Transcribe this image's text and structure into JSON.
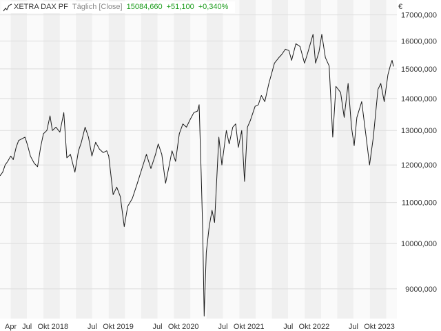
{
  "header": {
    "instrument": "XETRA DAX PF",
    "mode": "Täglich [Close]",
    "last": "15084,660",
    "change": "+51,100",
    "change_pct": "+0,340%",
    "indicator_icon": "line-chart-icon"
  },
  "colors": {
    "line": "#1a1a1a",
    "band_light": "#fafafa",
    "band_dark": "#f0f0f0",
    "right_band": "#ebebeb",
    "grid": "#dcdcdc",
    "positive": "#1a9b1a"
  },
  "chart_data": {
    "type": "line",
    "currency_label": "€",
    "y_scale": "log",
    "ylim": [
      8400,
      17600
    ],
    "y_ticks": [
      {
        "value": 9000,
        "label": "9000,000"
      },
      {
        "value": 10000,
        "label": "10000,000"
      },
      {
        "value": 11000,
        "label": "11000,000"
      },
      {
        "value": 12000,
        "label": "12000,000"
      },
      {
        "value": 13000,
        "label": "13000,000"
      },
      {
        "value": 14000,
        "label": "14000,000"
      },
      {
        "value": 15000,
        "label": "15000,000"
      },
      {
        "value": 16000,
        "label": "16000,000"
      },
      {
        "value": 17000,
        "label": "17000,000"
      }
    ],
    "x_range": [
      "2017-01-31",
      "2023-03-01"
    ],
    "x_ticks": [
      {
        "date": "2017-04-01",
        "label": "Apr"
      },
      {
        "date": "2017-07-01",
        "label": "Jul"
      },
      {
        "date": "2017-10-01",
        "label": "Okt"
      },
      {
        "date": "2018-01-01",
        "label": "2018"
      },
      {
        "date": "2018-04-01",
        "label": "Apr"
      },
      {
        "date": "2018-07-01",
        "label": "Jul"
      },
      {
        "date": "2018-10-01",
        "label": "Okt"
      },
      {
        "date": "2019-01-01",
        "label": "2019"
      },
      {
        "date": "2019-04-01",
        "label": "Apr"
      },
      {
        "date": "2019-07-01",
        "label": "Jul"
      },
      {
        "date": "2019-10-01",
        "label": "Okt"
      },
      {
        "date": "2020-01-01",
        "label": "2020"
      },
      {
        "date": "2020-04-01",
        "label": "Apr"
      },
      {
        "date": "2020-07-01",
        "label": "Jul"
      },
      {
        "date": "2020-10-01",
        "label": "Okt"
      },
      {
        "date": "2021-01-01",
        "label": "2021"
      },
      {
        "date": "2021-04-01",
        "label": "Apr"
      },
      {
        "date": "2021-07-01",
        "label": "Jul"
      },
      {
        "date": "2021-10-01",
        "label": "Okt"
      },
      {
        "date": "2022-01-01",
        "label": "2022"
      },
      {
        "date": "2022-04-01",
        "label": "Apr"
      },
      {
        "date": "2022-07-01",
        "label": "Jul"
      },
      {
        "date": "2022-10-01",
        "label": "Okt"
      },
      {
        "date": "2023-01-01",
        "label": "2023"
      }
    ],
    "x_tick_labels_visible": [
      "Apr",
      "Jul",
      "Okt",
      "2018",
      "Jul",
      "Okt",
      "2019",
      "Jul",
      "Okt",
      "2020",
      "Jul",
      "Okt",
      "2021",
      "Jul",
      "Okt",
      "2022",
      "Jul",
      "Okt",
      "2023"
    ],
    "grid": true,
    "series": [
      {
        "points": [
          [
            "2017-01-31",
            11700
          ],
          [
            "2017-02-15",
            11800
          ],
          [
            "2017-03-01",
            12000
          ],
          [
            "2017-03-15",
            12100
          ],
          [
            "2017-04-01",
            12250
          ],
          [
            "2017-04-15",
            12150
          ],
          [
            "2017-05-01",
            12500
          ],
          [
            "2017-05-15",
            12700
          ],
          [
            "2017-06-01",
            12750
          ],
          [
            "2017-06-20",
            12800
          ],
          [
            "2017-07-05",
            12550
          ],
          [
            "2017-07-20",
            12250
          ],
          [
            "2017-08-10",
            12050
          ],
          [
            "2017-08-29",
            11950
          ],
          [
            "2017-09-15",
            12500
          ],
          [
            "2017-10-01",
            12900
          ],
          [
            "2017-10-20",
            13000
          ],
          [
            "2017-11-07",
            13450
          ],
          [
            "2017-11-20",
            13000
          ],
          [
            "2017-12-10",
            13100
          ],
          [
            "2018-01-01",
            12950
          ],
          [
            "2018-01-23",
            13550
          ],
          [
            "2018-02-09",
            12200
          ],
          [
            "2018-03-01",
            12300
          ],
          [
            "2018-03-26",
            11800
          ],
          [
            "2018-04-15",
            12400
          ],
          [
            "2018-05-01",
            12650
          ],
          [
            "2018-05-22",
            13100
          ],
          [
            "2018-06-10",
            12800
          ],
          [
            "2018-06-29",
            12250
          ],
          [
            "2018-07-20",
            12650
          ],
          [
            "2018-08-10",
            12450
          ],
          [
            "2018-08-31",
            12350
          ],
          [
            "2018-09-20",
            12400
          ],
          [
            "2018-10-01",
            12250
          ],
          [
            "2018-10-26",
            11200
          ],
          [
            "2018-11-15",
            11400
          ],
          [
            "2018-12-05",
            11150
          ],
          [
            "2018-12-27",
            10400
          ],
          [
            "2019-01-15",
            10900
          ],
          [
            "2019-02-10",
            11100
          ],
          [
            "2019-03-10",
            11500
          ],
          [
            "2019-04-05",
            11900
          ],
          [
            "2019-04-30",
            12300
          ],
          [
            "2019-05-25",
            11900
          ],
          [
            "2019-06-20",
            12300
          ],
          [
            "2019-07-05",
            12600
          ],
          [
            "2019-07-25",
            12300
          ],
          [
            "2019-08-15",
            11500
          ],
          [
            "2019-09-05",
            12000
          ],
          [
            "2019-09-20",
            12400
          ],
          [
            "2019-10-10",
            12100
          ],
          [
            "2019-10-31",
            12900
          ],
          [
            "2019-11-20",
            13200
          ],
          [
            "2019-12-10",
            13100
          ],
          [
            "2020-01-01",
            13350
          ],
          [
            "2020-01-20",
            13550
          ],
          [
            "2020-02-10",
            13600
          ],
          [
            "2020-02-19",
            13800
          ],
          [
            "2020-03-01",
            11800
          ],
          [
            "2020-03-10",
            10300
          ],
          [
            "2020-03-18",
            8450
          ],
          [
            "2020-03-30",
            9800
          ],
          [
            "2020-04-15",
            10400
          ],
          [
            "2020-05-01",
            10800
          ],
          [
            "2020-05-15",
            10500
          ],
          [
            "2020-06-08",
            12800
          ],
          [
            "2020-06-25",
            12000
          ],
          [
            "2020-07-20",
            13000
          ],
          [
            "2020-08-05",
            12600
          ],
          [
            "2020-08-25",
            13100
          ],
          [
            "2020-09-10",
            13200
          ],
          [
            "2020-09-25",
            12500
          ],
          [
            "2020-10-14",
            13000
          ],
          [
            "2020-10-30",
            11550
          ],
          [
            "2020-11-15",
            13100
          ],
          [
            "2020-12-01",
            13300
          ],
          [
            "2020-12-28",
            13750
          ],
          [
            "2021-01-15",
            13800
          ],
          [
            "2021-02-01",
            14100
          ],
          [
            "2021-02-20",
            13900
          ],
          [
            "2021-03-15",
            14500
          ],
          [
            "2021-04-15",
            15200
          ],
          [
            "2021-05-10",
            15400
          ],
          [
            "2021-05-25",
            15500
          ],
          [
            "2021-06-15",
            15700
          ],
          [
            "2021-07-05",
            15650
          ],
          [
            "2021-07-20",
            15300
          ],
          [
            "2021-08-13",
            15900
          ],
          [
            "2021-09-05",
            15800
          ],
          [
            "2021-09-30",
            15200
          ],
          [
            "2021-10-15",
            15500
          ],
          [
            "2021-11-17",
            16250
          ],
          [
            "2021-12-01",
            15200
          ],
          [
            "2021-12-20",
            15600
          ],
          [
            "2022-01-05",
            16250
          ],
          [
            "2022-01-25",
            15400
          ],
          [
            "2022-02-15",
            15100
          ],
          [
            "2022-03-07",
            12800
          ],
          [
            "2022-03-25",
            14400
          ],
          [
            "2022-04-20",
            14200
          ],
          [
            "2022-05-10",
            13400
          ],
          [
            "2022-06-01",
            14500
          ],
          [
            "2022-06-20",
            13100
          ],
          [
            "2022-07-05",
            12550
          ],
          [
            "2022-07-20",
            13400
          ],
          [
            "2022-08-16",
            13900
          ],
          [
            "2022-09-10",
            12800
          ],
          [
            "2022-09-29",
            12000
          ],
          [
            "2022-10-20",
            12800
          ],
          [
            "2022-11-15",
            14300
          ],
          [
            "2022-12-01",
            14500
          ],
          [
            "2022-12-20",
            13900
          ],
          [
            "2023-01-10",
            14800
          ],
          [
            "2023-01-25",
            15150
          ],
          [
            "2023-02-02",
            15300
          ],
          [
            "2023-02-10",
            15084
          ]
        ]
      }
    ]
  }
}
